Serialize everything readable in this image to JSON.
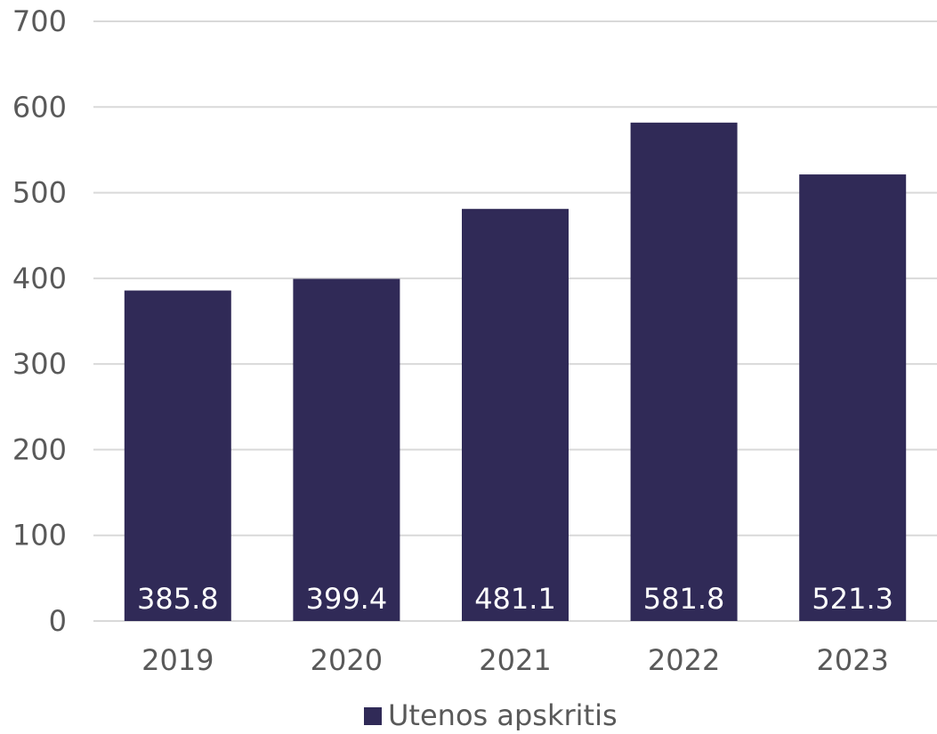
{
  "chart_data": {
    "type": "bar",
    "categories": [
      "2019",
      "2020",
      "2021",
      "2022",
      "2023"
    ],
    "series": [
      {
        "name": "Utenos apskritis",
        "values": [
          385.8,
          399.4,
          481.1,
          581.8,
          521.3
        ],
        "data_labels": [
          "385.8",
          "399.4",
          "481.1",
          "581.8",
          "521.3"
        ],
        "color": "#302a57"
      }
    ],
    "ylim": [
      0,
      700
    ],
    "yticks": [
      0,
      100,
      200,
      300,
      400,
      500,
      600,
      700
    ],
    "ytick_labels": [
      "0",
      "100",
      "200",
      "300",
      "400",
      "500",
      "600",
      "700"
    ],
    "grid": true,
    "legend_position": "bottom",
    "title": "",
    "xlabel": "",
    "ylabel": ""
  }
}
